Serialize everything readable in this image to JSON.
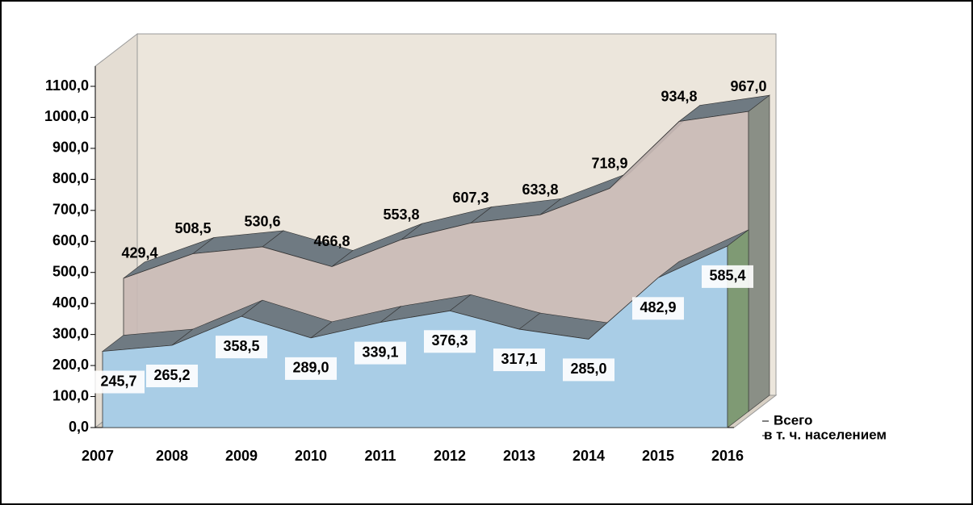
{
  "chart_data": {
    "type": "area3d",
    "categories": [
      "2007",
      "2008",
      "2009",
      "2010",
      "2011",
      "2012",
      "2013",
      "2014",
      "2015",
      "2016"
    ],
    "series": [
      {
        "name": "Всего",
        "color": "#c9b9b5",
        "values": [
          429.4,
          508.5,
          530.6,
          466.8,
          553.8,
          607.3,
          633.8,
          718.9,
          934.8,
          967.0
        ],
        "value_labels": [
          "429,4",
          "508,5",
          "530,6",
          "466,8",
          "553,8",
          "607,3",
          "633,8",
          "718,9",
          "934,8",
          "967,0"
        ]
      },
      {
        "name": "в т. ч. населением",
        "color": "#a9cde6",
        "values": [
          245.7,
          265.2,
          358.5,
          289.0,
          339.1,
          376.3,
          317.1,
          285.0,
          482.9,
          585.4
        ],
        "value_labels": [
          "245,7",
          "265,2",
          "358,5",
          "289,0",
          "339,1",
          "376,3",
          "317,1",
          "285,0",
          "482,9",
          "585,4"
        ]
      }
    ],
    "ylim": [
      0,
      1100
    ],
    "yticks": [
      {
        "value": 0,
        "label": "0,0"
      },
      {
        "value": 100,
        "label": "100,0"
      },
      {
        "value": 200,
        "label": "200,0"
      },
      {
        "value": 300,
        "label": "300,0"
      },
      {
        "value": 400,
        "label": "400,0"
      },
      {
        "value": 500,
        "label": "500,0"
      },
      {
        "value": 600,
        "label": "600,0"
      },
      {
        "value": 700,
        "label": "700,0"
      },
      {
        "value": 800,
        "label": "800,0"
      },
      {
        "value": 900,
        "label": "900,0"
      },
      {
        "value": 1000,
        "label": "1000,0"
      },
      {
        "value": 1100,
        "label": "1100,0"
      }
    ],
    "legend": "right"
  }
}
